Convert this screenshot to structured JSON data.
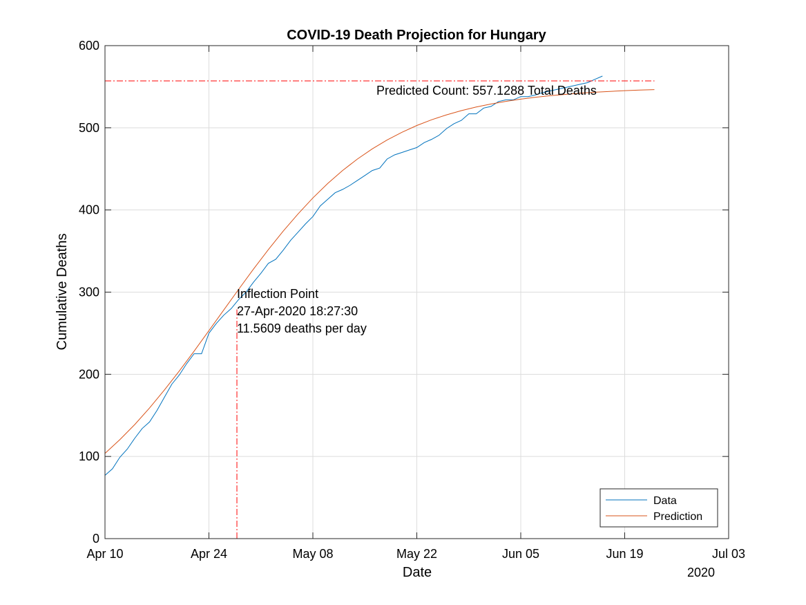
{
  "chart_data": {
    "type": "line",
    "title": "COVID-19 Death Projection for Hungary",
    "xlabel": "Date",
    "ylabel": "Cumulative Deaths",
    "x_year_label": "2020",
    "xlim": [
      "2020-04-10",
      "2020-07-03"
    ],
    "ylim": [
      0,
      600
    ],
    "grid": true,
    "x_ticks": [
      {
        "date": "2020-04-10",
        "label": "Apr 10"
      },
      {
        "date": "2020-04-24",
        "label": "Apr 24"
      },
      {
        "date": "2020-05-08",
        "label": "May 08"
      },
      {
        "date": "2020-05-22",
        "label": "May 22"
      },
      {
        "date": "2020-06-05",
        "label": "Jun 05"
      },
      {
        "date": "2020-06-19",
        "label": "Jun 19"
      },
      {
        "date": "2020-07-03",
        "label": "Jul 03"
      }
    ],
    "y_ticks": [
      {
        "value": 0,
        "label": "0"
      },
      {
        "value": 100,
        "label": "100"
      },
      {
        "value": 200,
        "label": "200"
      },
      {
        "value": 300,
        "label": "300"
      },
      {
        "value": 400,
        "label": "400"
      },
      {
        "value": 500,
        "label": "500"
      },
      {
        "value": 600,
        "label": "600"
      }
    ],
    "series": [
      {
        "name": "Data",
        "color": "#0072BD",
        "points": [
          [
            "2020-04-10",
            77
          ],
          [
            "2020-04-11",
            85
          ],
          [
            "2020-04-12",
            99
          ],
          [
            "2020-04-13",
            109
          ],
          [
            "2020-04-14",
            122
          ],
          [
            "2020-04-15",
            134
          ],
          [
            "2020-04-16",
            142
          ],
          [
            "2020-04-17",
            156
          ],
          [
            "2020-04-18",
            172
          ],
          [
            "2020-04-19",
            188
          ],
          [
            "2020-04-20",
            199
          ],
          [
            "2020-04-21",
            213
          ],
          [
            "2020-04-22",
            225
          ],
          [
            "2020-04-23",
            225
          ],
          [
            "2020-04-24",
            250
          ],
          [
            "2020-04-25",
            262
          ],
          [
            "2020-04-26",
            272
          ],
          [
            "2020-04-27",
            280
          ],
          [
            "2020-04-28",
            291
          ],
          [
            "2020-04-29",
            300
          ],
          [
            "2020-04-30",
            312
          ],
          [
            "2020-05-01",
            323
          ],
          [
            "2020-05-02",
            335
          ],
          [
            "2020-05-03",
            340
          ],
          [
            "2020-05-04",
            351
          ],
          [
            "2020-05-05",
            363
          ],
          [
            "2020-05-06",
            373
          ],
          [
            "2020-05-07",
            383
          ],
          [
            "2020-05-08",
            392
          ],
          [
            "2020-05-09",
            405
          ],
          [
            "2020-05-10",
            413
          ],
          [
            "2020-05-11",
            421
          ],
          [
            "2020-05-12",
            425
          ],
          [
            "2020-05-13",
            430
          ],
          [
            "2020-05-14",
            436
          ],
          [
            "2020-05-15",
            442
          ],
          [
            "2020-05-16",
            448
          ],
          [
            "2020-05-17",
            451
          ],
          [
            "2020-05-18",
            462
          ],
          [
            "2020-05-19",
            467
          ],
          [
            "2020-05-20",
            470
          ],
          [
            "2020-05-21",
            473
          ],
          [
            "2020-05-22",
            476
          ],
          [
            "2020-05-23",
            482
          ],
          [
            "2020-05-24",
            486
          ],
          [
            "2020-05-25",
            491
          ],
          [
            "2020-05-26",
            499
          ],
          [
            "2020-05-27",
            505
          ],
          [
            "2020-05-28",
            509
          ],
          [
            "2020-05-29",
            517
          ],
          [
            "2020-05-30",
            517
          ],
          [
            "2020-05-31",
            524
          ],
          [
            "2020-06-01",
            526
          ],
          [
            "2020-06-02",
            532
          ],
          [
            "2020-06-03",
            534
          ],
          [
            "2020-06-04",
            534
          ],
          [
            "2020-06-05",
            538
          ],
          [
            "2020-06-06",
            538
          ],
          [
            "2020-06-07",
            540
          ],
          [
            "2020-06-08",
            543
          ],
          [
            "2020-06-09",
            545
          ],
          [
            "2020-06-10",
            547
          ],
          [
            "2020-06-11",
            549
          ],
          [
            "2020-06-12",
            551
          ],
          [
            "2020-06-13",
            553
          ],
          [
            "2020-06-14",
            555
          ],
          [
            "2020-06-15",
            559
          ],
          [
            "2020-06-16",
            563
          ]
        ]
      },
      {
        "name": "Prediction",
        "color": "#D95319",
        "points": [
          [
            "2020-04-10",
            103.7
          ],
          [
            "2020-04-12",
            120.4
          ],
          [
            "2020-04-14",
            138.8
          ],
          [
            "2020-04-16",
            159.0
          ],
          [
            "2020-04-18",
            180.8
          ],
          [
            "2020-04-20",
            203.9
          ],
          [
            "2020-04-22",
            228.1
          ],
          [
            "2020-04-24",
            253.1
          ],
          [
            "2020-04-26",
            278.3
          ],
          [
            "2020-04-28",
            303.4
          ],
          [
            "2020-04-30",
            328.0
          ],
          [
            "2020-05-02",
            351.7
          ],
          [
            "2020-05-04",
            374.2
          ],
          [
            "2020-05-06",
            395.2
          ],
          [
            "2020-05-08",
            414.6
          ],
          [
            "2020-05-10",
            432.2
          ],
          [
            "2020-05-12",
            448.0
          ],
          [
            "2020-05-14",
            462.0
          ],
          [
            "2020-05-16",
            474.4
          ],
          [
            "2020-05-18",
            485.2
          ],
          [
            "2020-05-20",
            494.6
          ],
          [
            "2020-05-22",
            502.8
          ],
          [
            "2020-05-24",
            509.8
          ],
          [
            "2020-05-26",
            515.8
          ],
          [
            "2020-05-28",
            520.9
          ],
          [
            "2020-05-30",
            525.3
          ],
          [
            "2020-06-01",
            529.0
          ],
          [
            "2020-06-03",
            532.2
          ],
          [
            "2020-06-05",
            534.9
          ],
          [
            "2020-06-07",
            537.2
          ],
          [
            "2020-06-09",
            539.1
          ],
          [
            "2020-06-11",
            540.7
          ],
          [
            "2020-06-13",
            542.1
          ],
          [
            "2020-06-15",
            543.3
          ],
          [
            "2020-06-17",
            544.3
          ],
          [
            "2020-06-19",
            545.2
          ],
          [
            "2020-06-21",
            545.9
          ],
          [
            "2020-06-23",
            546.5
          ]
        ]
      }
    ],
    "reference_lines": {
      "color": "#FF0000",
      "style": "dash-dot",
      "horizontal_y": 557.1288,
      "horizontal_x_range": [
        "2020-04-10",
        "2020-06-23"
      ],
      "vertical_x": "2020-04-27T18:27:30",
      "vertical_y_range": [
        0,
        279
      ]
    },
    "annotations": {
      "predicted_count": "Predicted Count: 557.1288 Total Deaths",
      "inflection_line1": "Inflection Point",
      "inflection_line2": "27-Apr-2020 18:27:30",
      "inflection_line3": "11.5609 deaths per day"
    },
    "legend": {
      "position": "bottom-right",
      "entries": [
        "Data",
        "Prediction"
      ]
    }
  }
}
